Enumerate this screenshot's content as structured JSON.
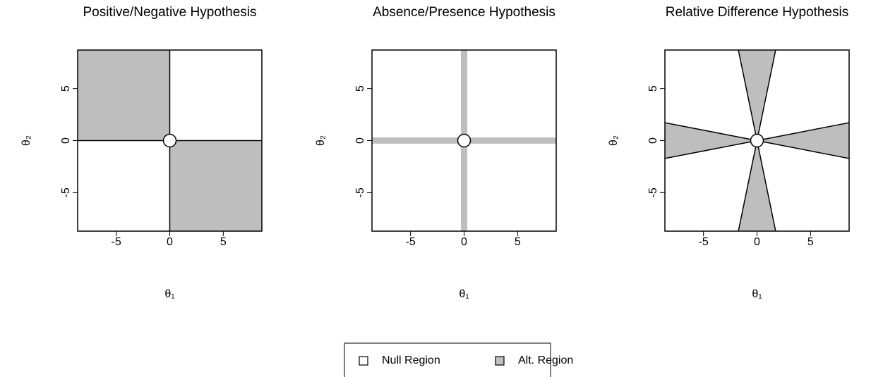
{
  "chart_data": [
    {
      "type": "region",
      "title": "Positive/Negative Hypothesis",
      "x_label": "θ₁",
      "y_label": "θ₂",
      "xlim": [
        -8.6,
        8.6
      ],
      "ylim": [
        -8.7,
        8.7
      ],
      "xticks": [
        -5,
        0,
        5
      ],
      "yticks": [
        -5,
        0,
        5
      ],
      "color": "#bebebe",
      "border": true,
      "alt_regions": [
        [
          [
            -10,
            0
          ],
          [
            0,
            0
          ],
          [
            0,
            10
          ],
          [
            -10,
            10
          ]
        ],
        [
          [
            0,
            0
          ],
          [
            10,
            0
          ],
          [
            10,
            -10
          ],
          [
            0,
            -10
          ]
        ]
      ],
      "null_point": [
        0,
        0
      ]
    },
    {
      "type": "region",
      "title": "Absence/Presence Hypothesis",
      "x_label": "θ₁",
      "y_label": "θ₂",
      "xlim": [
        -8.6,
        8.6
      ],
      "ylim": [
        -8.7,
        8.7
      ],
      "xticks": [
        -5,
        0,
        5
      ],
      "yticks": [
        -5,
        0,
        5
      ],
      "color": "#bebebe",
      "border": false,
      "alt_regions": [
        [
          [
            -0.3,
            -10
          ],
          [
            0.3,
            -10
          ],
          [
            0.3,
            10
          ],
          [
            -0.3,
            10
          ]
        ],
        [
          [
            -10,
            -0.3
          ],
          [
            10,
            -0.3
          ],
          [
            10,
            0.3
          ],
          [
            -10,
            0.3
          ]
        ]
      ],
      "null_point": [
        0,
        0
      ]
    },
    {
      "type": "region",
      "title": "Relative Difference Hypothesis",
      "x_label": "θ₁",
      "y_label": "θ₂",
      "xlim": [
        -8.6,
        8.6
      ],
      "ylim": [
        -8.7,
        8.7
      ],
      "xticks": [
        -5,
        0,
        5
      ],
      "yticks": [
        -5,
        0,
        5
      ],
      "color": "#bebebe",
      "border": true,
      "alt_regions": [
        [
          [
            0,
            0
          ],
          [
            -2,
            10
          ],
          [
            2,
            10
          ]
        ],
        [
          [
            0,
            0
          ],
          [
            10,
            2
          ],
          [
            10,
            -2
          ]
        ],
        [
          [
            0,
            0
          ],
          [
            -2,
            -10
          ],
          [
            2,
            -10
          ]
        ],
        [
          [
            0,
            0
          ],
          [
            -10,
            2
          ],
          [
            -10,
            -2
          ]
        ]
      ],
      "null_point": [
        0,
        0
      ]
    }
  ],
  "legend": [
    {
      "name": "Null Region",
      "color": "#ffffff"
    },
    {
      "name": "Alt. Region",
      "color": "#bebebe"
    }
  ]
}
